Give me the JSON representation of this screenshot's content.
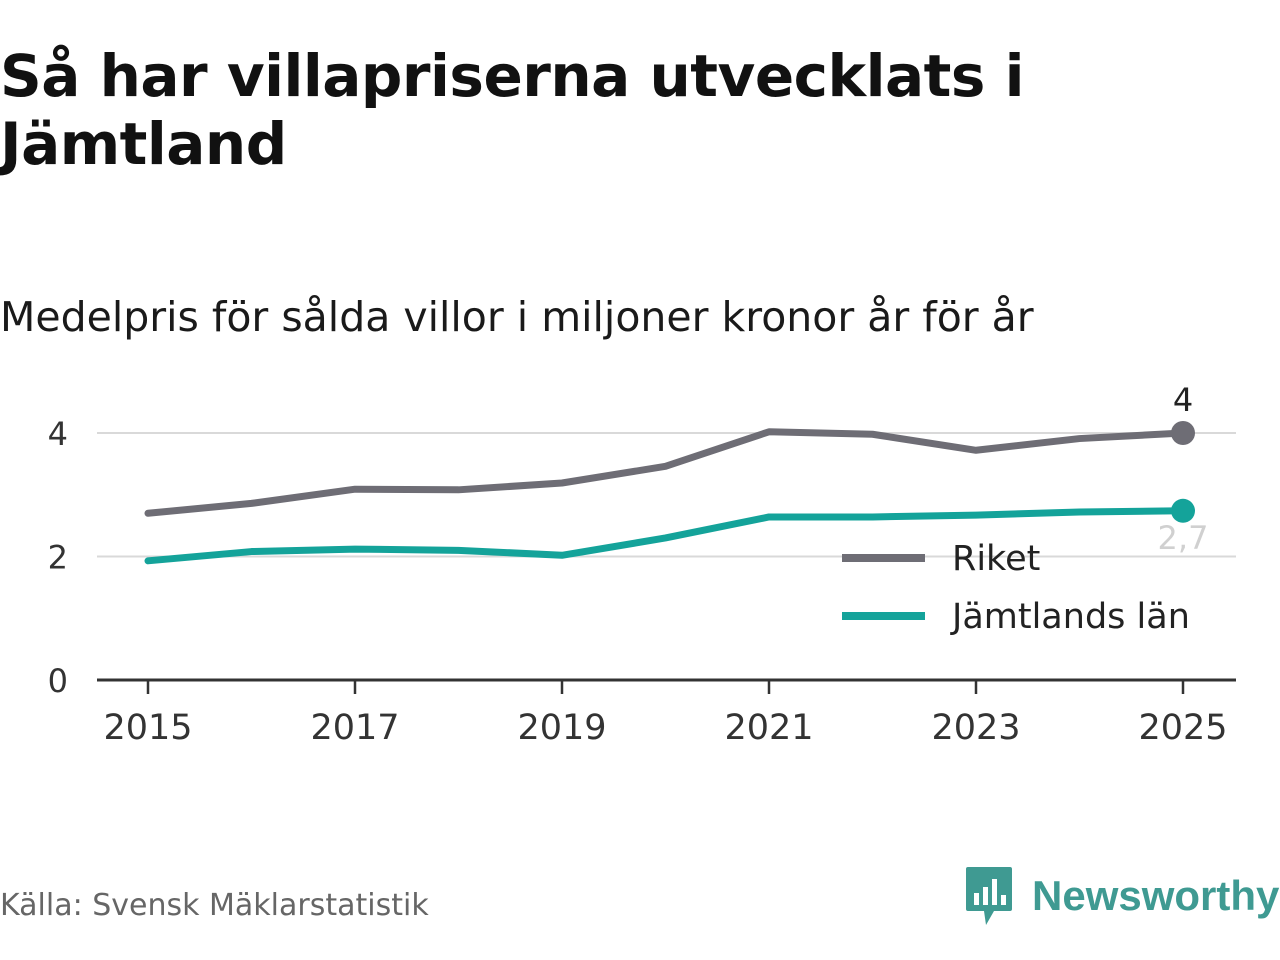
{
  "header": {
    "title": "Så har villapriserna utvecklats i Jämtland",
    "subtitle": "Medelpris för sålda villor i miljoner kronor år för år"
  },
  "footer": {
    "source": "Källa: Svensk Mäklarstatistik",
    "brand": "Newsworthy",
    "brand_icon": "bar-chart-bubble-icon"
  },
  "colors": {
    "riket": "#6e6d75",
    "jamtland": "#14a39a",
    "grid": "#d9d9d9",
    "axis": "#333333",
    "brand": "#3f9a92"
  },
  "chart_data": {
    "type": "line",
    "title": "Så har villapriserna utvecklats i Jämtland",
    "subtitle": "Medelpris för sålda villor i miljoner kronor år för år",
    "xlabel": "",
    "ylabel": "",
    "x": [
      2015,
      2016,
      2017,
      2018,
      2019,
      2020,
      2021,
      2022,
      2023,
      2024,
      2025
    ],
    "xticks": [
      "2015",
      "2017",
      "2019",
      "2021",
      "2023",
      "2025"
    ],
    "yticks": [
      "0",
      "2",
      "4"
    ],
    "ylim": [
      0,
      4.4
    ],
    "grid": true,
    "legend_position": "right",
    "series": [
      {
        "name": "Riket",
        "values": [
          2.7,
          2.86,
          3.09,
          3.08,
          3.19,
          3.46,
          4.02,
          3.98,
          3.72,
          3.91,
          4.0
        ],
        "end_label": "4"
      },
      {
        "name": "Jämtlands län",
        "values": [
          1.93,
          2.08,
          2.12,
          2.1,
          2.02,
          2.3,
          2.64,
          2.64,
          2.67,
          2.72,
          2.74
        ],
        "end_label": "2,7"
      }
    ]
  }
}
